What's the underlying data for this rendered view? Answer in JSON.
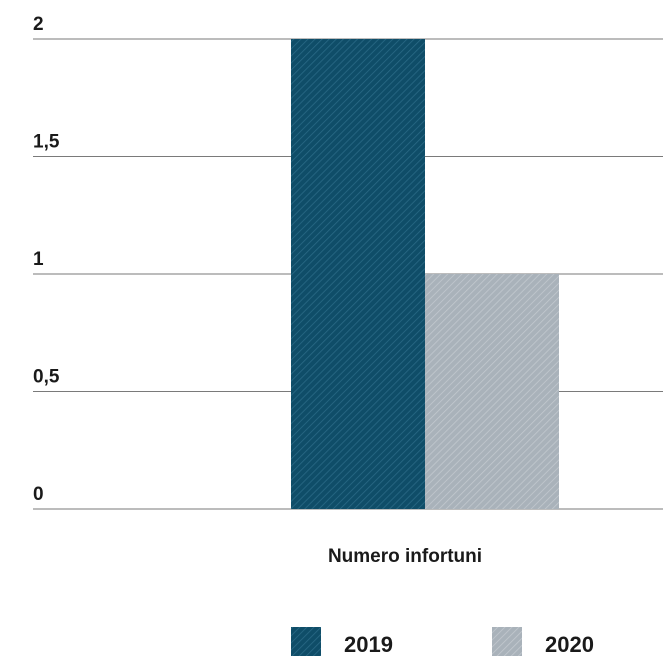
{
  "chart_data": {
    "type": "bar",
    "categories": [
      "Numero infortuni"
    ],
    "series": [
      {
        "name": "2019",
        "values": [
          2
        ],
        "color": "#0f4d68",
        "pattern": "diagonal-hatch"
      },
      {
        "name": "2020",
        "values": [
          1
        ],
        "color": "#a9b2ba",
        "pattern": "diagonal-hatch"
      }
    ],
    "ylim": [
      0,
      2
    ],
    "yticks": [
      0,
      0.5,
      1,
      1.5,
      2
    ],
    "ytick_labels": [
      "0",
      "0,5",
      "1",
      "1,5",
      "2"
    ],
    "grid": "horizontal",
    "legend_position": "bottom"
  }
}
